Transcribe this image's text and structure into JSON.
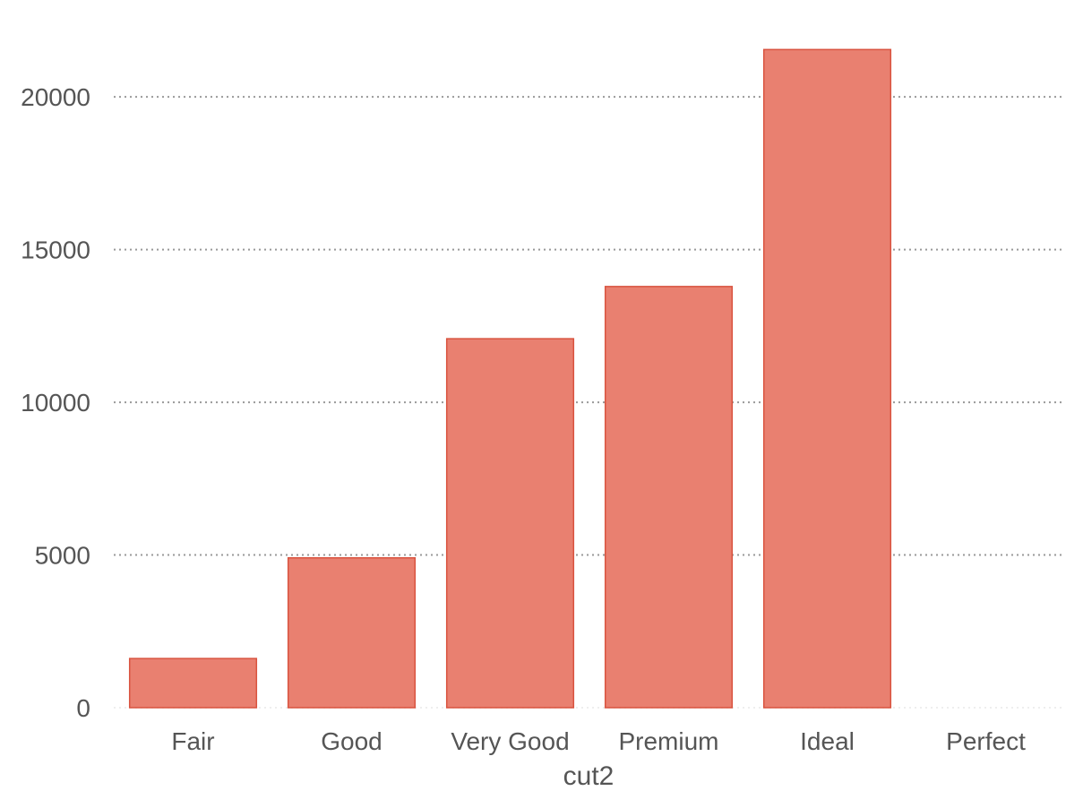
{
  "chart_data": {
    "type": "bar",
    "categories": [
      "Fair",
      "Good",
      "Very Good",
      "Premium",
      "Ideal",
      "Perfect"
    ],
    "values": [
      1610,
      4906,
      12082,
      13791,
      21551,
      0
    ],
    "title": "",
    "xlabel": "cut2",
    "ylabel": "",
    "ylim": [
      0,
      22000
    ],
    "yticks": [
      0,
      5000,
      10000,
      15000,
      20000
    ],
    "grid": "horizontal dotted",
    "legend": "none",
    "colors": {
      "bar_fill": "#e98070",
      "bar_stroke": "#d9533f",
      "grid": "#999999",
      "text": "#555555"
    }
  }
}
